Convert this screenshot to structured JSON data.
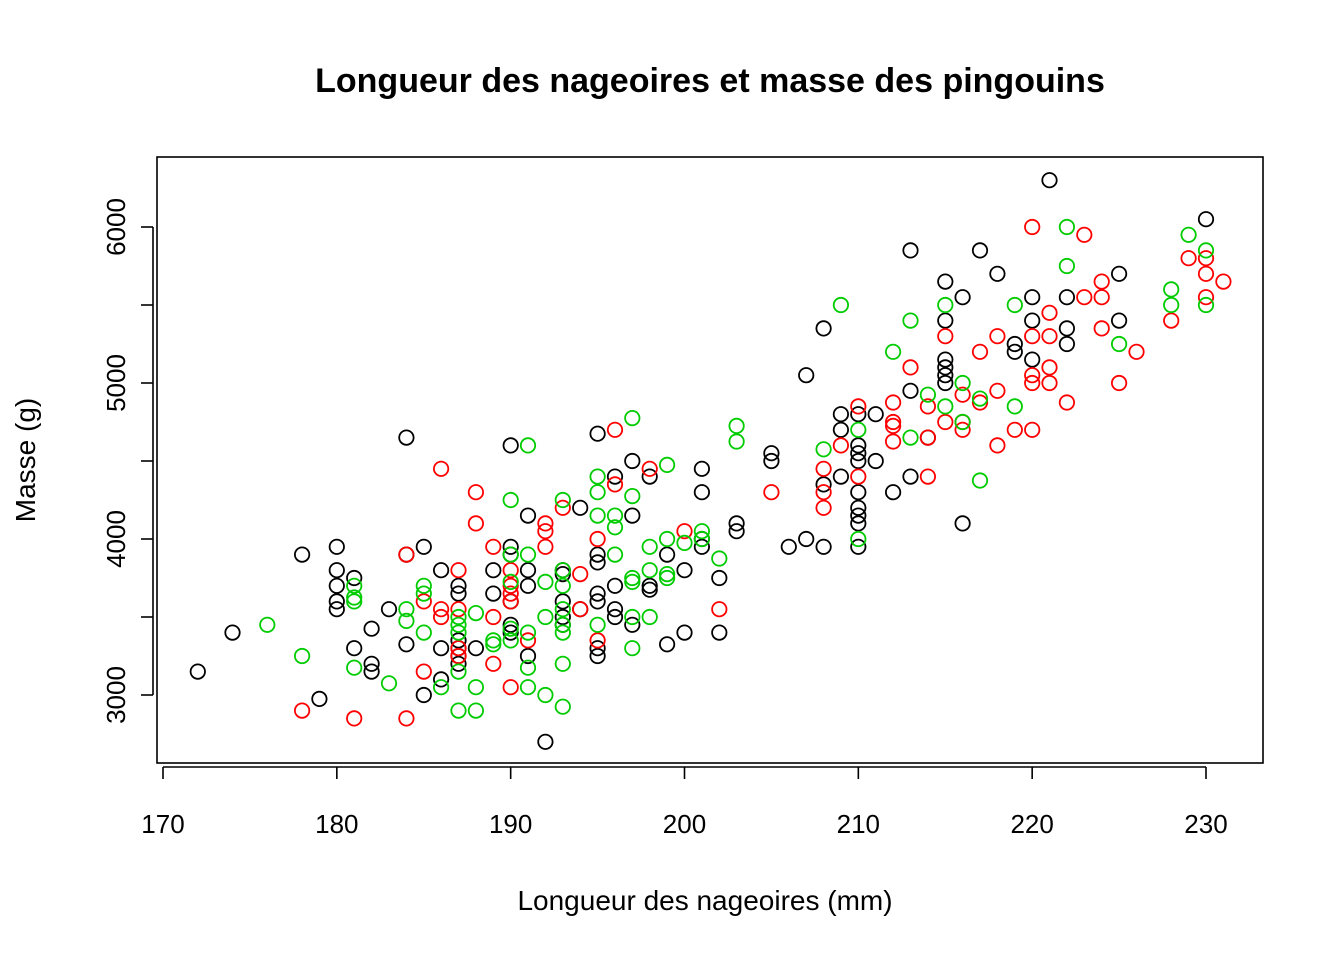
{
  "chart_data": {
    "type": "scatter",
    "title": "Longueur des nageoires et masse des pingouins",
    "xlabel": "Longueur des nageoires (mm)",
    "ylabel": "Masse (g)",
    "xlim": [
      170,
      233
    ],
    "ylim": [
      2600,
      6450
    ],
    "x_ticks": [
      170,
      180,
      190,
      200,
      210,
      220,
      230
    ],
    "y_ticks": [
      3000,
      3500,
      4000,
      4500,
      5000,
      5500,
      6000
    ],
    "y_tick_labels": [
      "3000",
      "",
      "4000",
      "",
      "5000",
      "",
      "6000"
    ],
    "grid": false,
    "legend": "none",
    "series": [
      {
        "color": "#000000",
        "points": [
          [
            172,
            3150
          ],
          [
            174,
            3400
          ],
          [
            178,
            3900
          ],
          [
            179,
            2975
          ],
          [
            180,
            3950
          ],
          [
            180,
            3800
          ],
          [
            180,
            3700
          ],
          [
            180,
            3600
          ],
          [
            180,
            3550
          ],
          [
            181,
            3750
          ],
          [
            181,
            3300
          ],
          [
            182,
            3425
          ],
          [
            182,
            3200
          ],
          [
            182,
            3150
          ],
          [
            183,
            3550
          ],
          [
            184,
            4650
          ],
          [
            184,
            3900
          ],
          [
            184,
            3325
          ],
          [
            185,
            3950
          ],
          [
            185,
            3000
          ],
          [
            186,
            3800
          ],
          [
            186,
            3300
          ],
          [
            186,
            3100
          ],
          [
            187,
            3700
          ],
          [
            187,
            3650
          ],
          [
            187,
            3350
          ],
          [
            187,
            3300
          ],
          [
            187,
            3250
          ],
          [
            187,
            3200
          ],
          [
            188,
            3300
          ],
          [
            189,
            3800
          ],
          [
            189,
            3650
          ],
          [
            190,
            4600
          ],
          [
            190,
            3950
          ],
          [
            190,
            3900
          ],
          [
            190,
            3450
          ],
          [
            190,
            3400
          ],
          [
            190,
            3600
          ],
          [
            191,
            4150
          ],
          [
            191,
            3800
          ],
          [
            191,
            3700
          ],
          [
            191,
            3250
          ],
          [
            192,
            2700
          ],
          [
            193,
            3800
          ],
          [
            193,
            3775
          ],
          [
            193,
            3600
          ],
          [
            193,
            3500
          ],
          [
            193,
            3450
          ],
          [
            194,
            4200
          ],
          [
            194,
            3550
          ],
          [
            195,
            4675
          ],
          [
            195,
            3900
          ],
          [
            195,
            3850
          ],
          [
            195,
            3650
          ],
          [
            195,
            3600
          ],
          [
            195,
            3300
          ],
          [
            195,
            3250
          ],
          [
            196,
            4400
          ],
          [
            196,
            3700
          ],
          [
            196,
            3550
          ],
          [
            196,
            3500
          ],
          [
            197,
            4500
          ],
          [
            197,
            4150
          ],
          [
            197,
            3450
          ],
          [
            198,
            4400
          ],
          [
            198,
            3700
          ],
          [
            198,
            3675
          ],
          [
            199,
            3900
          ],
          [
            199,
            3325
          ],
          [
            200,
            3800
          ],
          [
            200,
            3400
          ],
          [
            201,
            4450
          ],
          [
            201,
            4300
          ],
          [
            201,
            4000
          ],
          [
            201,
            3950
          ],
          [
            202,
            3750
          ],
          [
            202,
            3400
          ],
          [
            203,
            4100
          ],
          [
            203,
            4050
          ],
          [
            205,
            4550
          ],
          [
            205,
            4500
          ],
          [
            206,
            3950
          ],
          [
            207,
            5050
          ],
          [
            207,
            4000
          ],
          [
            208,
            5350
          ],
          [
            208,
            4350
          ],
          [
            208,
            3950
          ],
          [
            209,
            4800
          ],
          [
            209,
            4700
          ],
          [
            209,
            4400
          ],
          [
            210,
            4800
          ],
          [
            210,
            4600
          ],
          [
            210,
            4550
          ],
          [
            210,
            4500
          ],
          [
            210,
            4300
          ],
          [
            210,
            4200
          ],
          [
            210,
            4150
          ],
          [
            210,
            4100
          ],
          [
            210,
            3950
          ],
          [
            211,
            4800
          ],
          [
            211,
            4500
          ],
          [
            212,
            4300
          ],
          [
            213,
            5850
          ],
          [
            213,
            4950
          ],
          [
            213,
            4400
          ],
          [
            214,
            4650
          ],
          [
            215,
            5650
          ],
          [
            215,
            5400
          ],
          [
            215,
            5150
          ],
          [
            215,
            5100
          ],
          [
            215,
            5050
          ],
          [
            215,
            5000
          ],
          [
            216,
            5550
          ],
          [
            216,
            4100
          ],
          [
            217,
            5850
          ],
          [
            218,
            5700
          ],
          [
            219,
            5250
          ],
          [
            219,
            5200
          ],
          [
            220,
            5550
          ],
          [
            220,
            5400
          ],
          [
            220,
            5150
          ],
          [
            221,
            6300
          ],
          [
            222,
            5550
          ],
          [
            222,
            5350
          ],
          [
            222,
            5250
          ],
          [
            225,
            5700
          ],
          [
            225,
            5400
          ],
          [
            230,
            6050
          ]
        ]
      },
      {
        "color": "#ff0000",
        "points": [
          [
            178,
            2900
          ],
          [
            181,
            2850
          ],
          [
            184,
            3900
          ],
          [
            184,
            2850
          ],
          [
            185,
            3600
          ],
          [
            185,
            3150
          ],
          [
            186,
            4450
          ],
          [
            186,
            3550
          ],
          [
            186,
            3500
          ],
          [
            187,
            3800
          ],
          [
            187,
            3550
          ],
          [
            187,
            3300
          ],
          [
            187,
            3250
          ],
          [
            188,
            4300
          ],
          [
            188,
            4100
          ],
          [
            189,
            3950
          ],
          [
            189,
            3500
          ],
          [
            189,
            3200
          ],
          [
            190,
            3800
          ],
          [
            190,
            3700
          ],
          [
            190,
            3650
          ],
          [
            190,
            3600
          ],
          [
            190,
            3050
          ],
          [
            191,
            3350
          ],
          [
            192,
            4100
          ],
          [
            192,
            4050
          ],
          [
            192,
            3950
          ],
          [
            193,
            4200
          ],
          [
            194,
            3775
          ],
          [
            194,
            3550
          ],
          [
            195,
            4000
          ],
          [
            195,
            3350
          ],
          [
            196,
            4700
          ],
          [
            196,
            4350
          ],
          [
            198,
            4450
          ],
          [
            200,
            4050
          ],
          [
            202,
            3550
          ],
          [
            205,
            4300
          ],
          [
            208,
            4450
          ],
          [
            208,
            4300
          ],
          [
            208,
            4200
          ],
          [
            209,
            4600
          ],
          [
            210,
            4850
          ],
          [
            210,
            4400
          ],
          [
            212,
            4875
          ],
          [
            212,
            4750
          ],
          [
            212,
            4725
          ],
          [
            212,
            4625
          ],
          [
            213,
            5100
          ],
          [
            214,
            4850
          ],
          [
            214,
            4650
          ],
          [
            214,
            4400
          ],
          [
            215,
            5300
          ],
          [
            215,
            4750
          ],
          [
            216,
            4925
          ],
          [
            216,
            4750
          ],
          [
            216,
            4700
          ],
          [
            217,
            5200
          ],
          [
            217,
            4875
          ],
          [
            218,
            5300
          ],
          [
            218,
            4950
          ],
          [
            218,
            4600
          ],
          [
            219,
            4700
          ],
          [
            220,
            6000
          ],
          [
            220,
            5300
          ],
          [
            220,
            5050
          ],
          [
            220,
            5000
          ],
          [
            220,
            4700
          ],
          [
            221,
            5450
          ],
          [
            221,
            5300
          ],
          [
            221,
            5100
          ],
          [
            221,
            5000
          ],
          [
            222,
            4875
          ],
          [
            223,
            5950
          ],
          [
            223,
            5550
          ],
          [
            224,
            5650
          ],
          [
            224,
            5550
          ],
          [
            224,
            5350
          ],
          [
            225,
            5000
          ],
          [
            226,
            5200
          ],
          [
            228,
            5400
          ],
          [
            229,
            5800
          ],
          [
            230,
            5800
          ],
          [
            230,
            5700
          ],
          [
            230,
            5550
          ],
          [
            231,
            5650
          ]
        ]
      },
      {
        "color": "#00cc00",
        "points": [
          [
            176,
            3450
          ],
          [
            178,
            3250
          ],
          [
            181,
            3700
          ],
          [
            181,
            3625
          ],
          [
            181,
            3600
          ],
          [
            181,
            3175
          ],
          [
            183,
            3075
          ],
          [
            184,
            3550
          ],
          [
            184,
            3475
          ],
          [
            185,
            3700
          ],
          [
            185,
            3650
          ],
          [
            185,
            3400
          ],
          [
            186,
            3050
          ],
          [
            187,
            3500
          ],
          [
            187,
            3450
          ],
          [
            187,
            3400
          ],
          [
            187,
            3150
          ],
          [
            187,
            2900
          ],
          [
            188,
            3525
          ],
          [
            188,
            3050
          ],
          [
            188,
            2900
          ],
          [
            189,
            3350
          ],
          [
            189,
            3325
          ],
          [
            190,
            4250
          ],
          [
            190,
            3900
          ],
          [
            190,
            3725
          ],
          [
            190,
            3425
          ],
          [
            190,
            3350
          ],
          [
            191,
            4600
          ],
          [
            191,
            3900
          ],
          [
            191,
            3400
          ],
          [
            191,
            3175
          ],
          [
            191,
            3050
          ],
          [
            192,
            3725
          ],
          [
            192,
            3500
          ],
          [
            192,
            3000
          ],
          [
            193,
            4250
          ],
          [
            193,
            3800
          ],
          [
            193,
            3700
          ],
          [
            193,
            3550
          ],
          [
            193,
            3450
          ],
          [
            193,
            3400
          ],
          [
            193,
            3200
          ],
          [
            193,
            2925
          ],
          [
            195,
            4400
          ],
          [
            195,
            4300
          ],
          [
            195,
            4150
          ],
          [
            195,
            3450
          ],
          [
            196,
            4150
          ],
          [
            196,
            4075
          ],
          [
            196,
            3900
          ],
          [
            197,
            4775
          ],
          [
            197,
            4275
          ],
          [
            197,
            3750
          ],
          [
            197,
            3725
          ],
          [
            197,
            3500
          ],
          [
            197,
            3300
          ],
          [
            198,
            3950
          ],
          [
            198,
            3800
          ],
          [
            198,
            3500
          ],
          [
            199,
            4475
          ],
          [
            199,
            4000
          ],
          [
            199,
            3775
          ],
          [
            199,
            3750
          ],
          [
            200,
            3975
          ],
          [
            201,
            4050
          ],
          [
            201,
            4000
          ],
          [
            202,
            3875
          ],
          [
            203,
            4725
          ],
          [
            203,
            4625
          ],
          [
            208,
            4575
          ],
          [
            209,
            5500
          ],
          [
            210,
            4700
          ],
          [
            210,
            4000
          ],
          [
            212,
            5200
          ],
          [
            213,
            5400
          ],
          [
            213,
            4650
          ],
          [
            214,
            4925
          ],
          [
            215,
            5500
          ],
          [
            215,
            4850
          ],
          [
            216,
            5000
          ],
          [
            216,
            4750
          ],
          [
            217,
            4900
          ],
          [
            217,
            4375
          ],
          [
            219,
            5500
          ],
          [
            219,
            4850
          ],
          [
            222,
            6000
          ],
          [
            222,
            5750
          ],
          [
            225,
            5250
          ],
          [
            228,
            5600
          ],
          [
            228,
            5500
          ],
          [
            229,
            5950
          ],
          [
            230,
            5850
          ],
          [
            230,
            5500
          ]
        ]
      }
    ]
  }
}
